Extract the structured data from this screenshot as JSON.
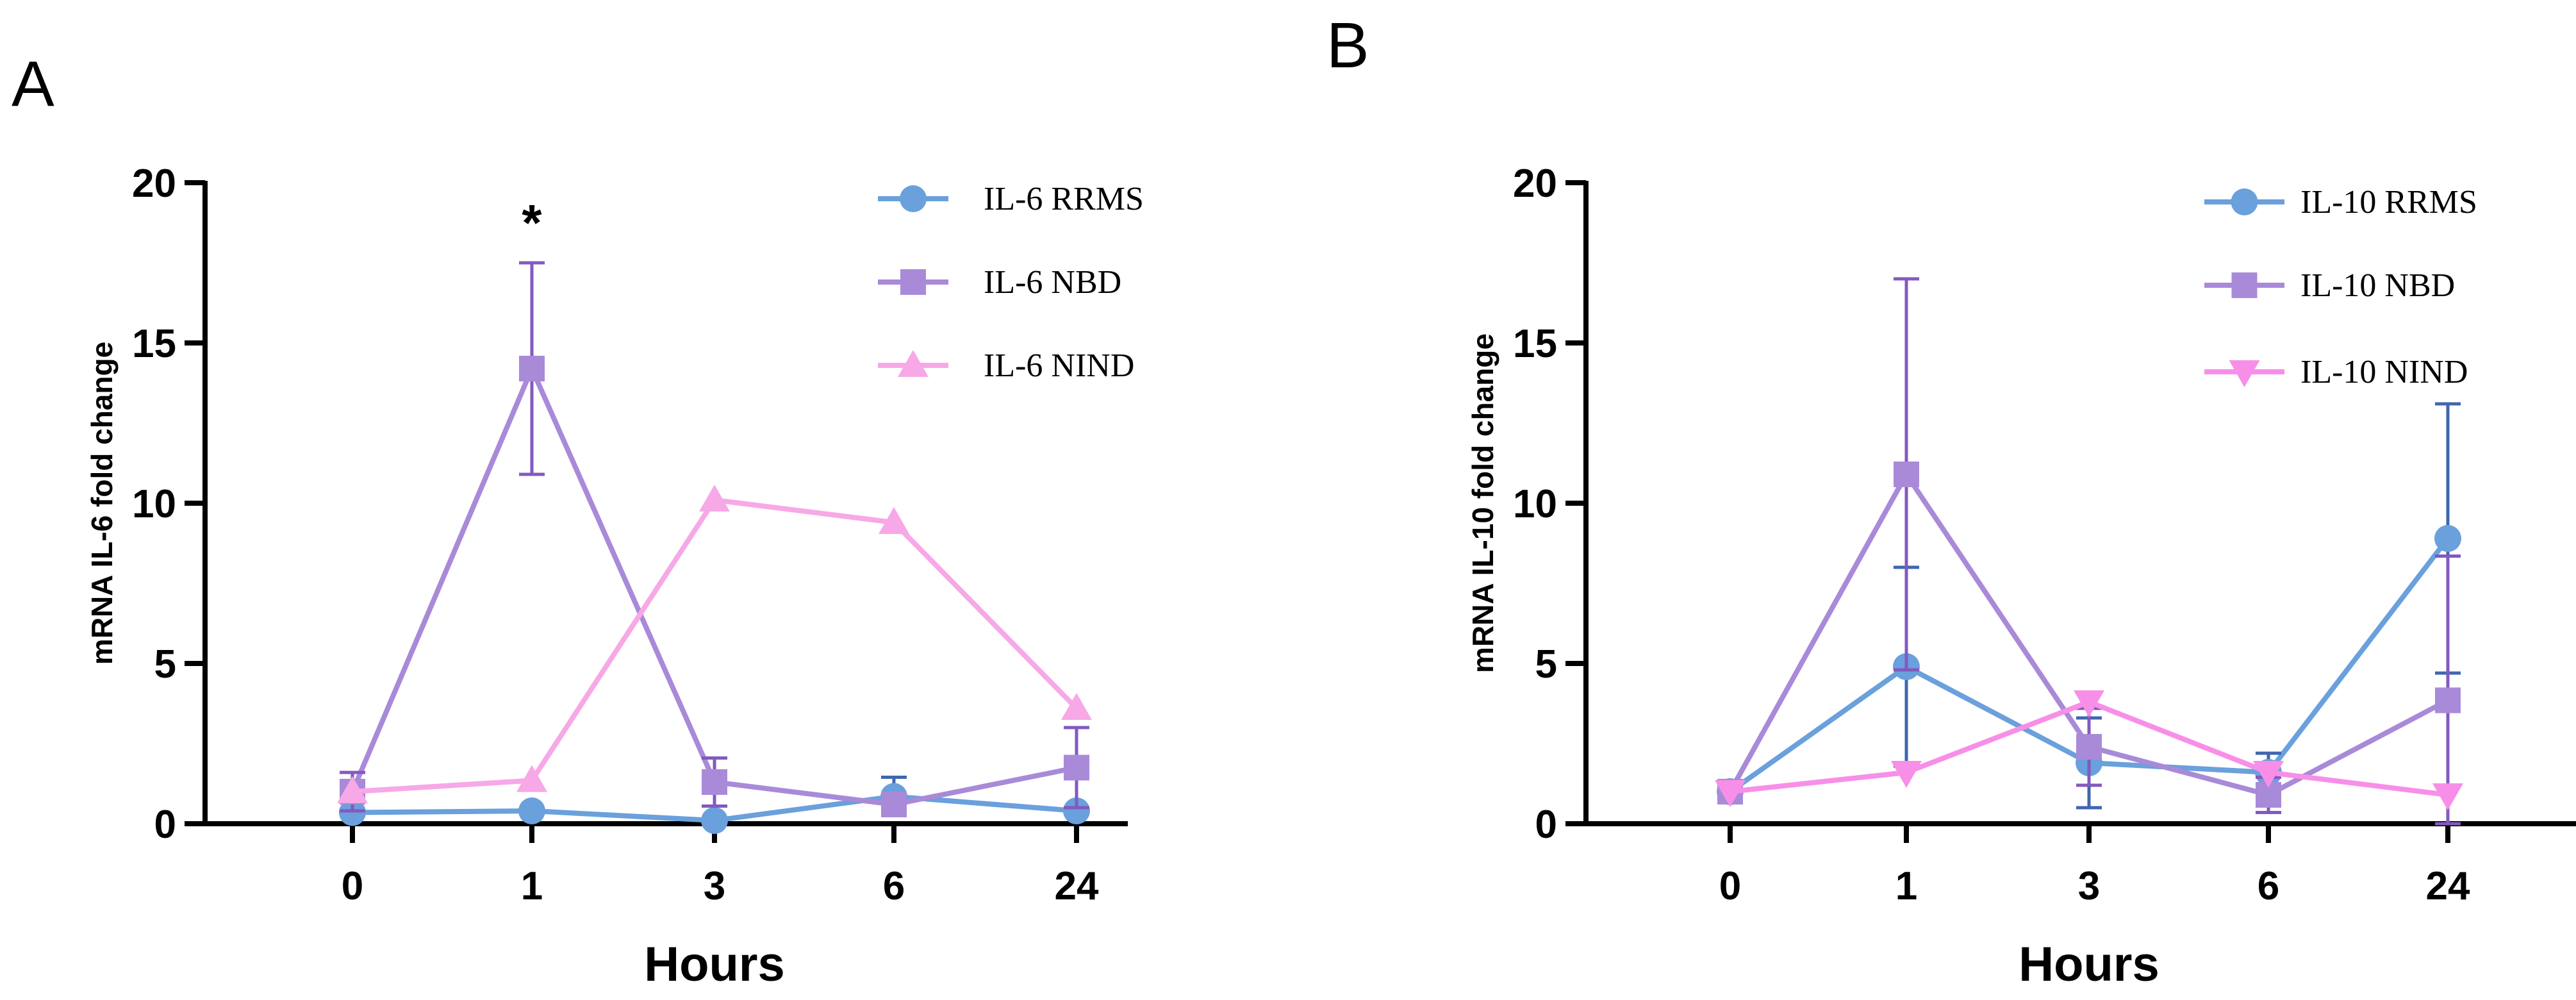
{
  "chart_data": [
    {
      "type": "line",
      "panel_label": "A",
      "xlabel": "Hours",
      "ylabel": "mRNA IL-6 fold change",
      "categories": [
        "0",
        "1",
        "3",
        "6",
        "24"
      ],
      "ylim": [
        0,
        20
      ],
      "yticks": [
        0,
        5,
        10,
        15,
        20
      ],
      "grid": false,
      "legend_position": "top-right",
      "series": [
        {
          "name": "IL-6 RRMS",
          "color": "#6aa0dc",
          "marker": "circle",
          "values": [
            0.35,
            0.4,
            0.1,
            0.85,
            0.4
          ],
          "err": [
            0,
            0,
            0,
            0.6,
            0
          ],
          "err_color": "#3f66b0"
        },
        {
          "name": "IL-6 NBD",
          "color": "#a98ad8",
          "marker": "square",
          "values": [
            1.0,
            14.2,
            1.3,
            0.6,
            1.75
          ],
          "err": [
            0.6,
            3.3,
            0.75,
            0.35,
            1.25
          ],
          "err_color": "#8359c0"
        },
        {
          "name": "IL-6 NIND",
          "color": "#f7a8e6",
          "marker": "triangle-up",
          "values": [
            1.0,
            1.35,
            10.1,
            9.4,
            3.6
          ],
          "err": [
            0,
            0,
            0,
            0,
            0
          ],
          "err_color": "#f7a8e6"
        }
      ],
      "annotations": [
        {
          "text": "*",
          "category": "1"
        }
      ]
    },
    {
      "type": "line",
      "panel_label": "B",
      "xlabel": "Hours",
      "ylabel": "mRNA IL-10  fold change",
      "categories": [
        "0",
        "1",
        "3",
        "6",
        "24"
      ],
      "ylim": [
        0,
        20
      ],
      "yticks": [
        0,
        5,
        10,
        15,
        20
      ],
      "grid": false,
      "legend_position": "top-right",
      "series": [
        {
          "name": "IL-10 RRMS",
          "color": "#6aa0dc",
          "marker": "circle",
          "values": [
            1.0,
            4.9,
            1.9,
            1.6,
            8.9
          ],
          "err": [
            0,
            3.1,
            1.4,
            0.6,
            4.2
          ],
          "err_color": "#3f66b0"
        },
        {
          "name": "IL-10 NBD",
          "color": "#a98ad8",
          "marker": "square",
          "values": [
            1.0,
            10.9,
            2.4,
            0.9,
            3.85
          ],
          "err": [
            0,
            6.1,
            1.2,
            0.55,
            4.5
          ],
          "err_color": "#8359c0"
        },
        {
          "name": "IL-10 NIND",
          "color": "#f78fe8",
          "marker": "triangle-down",
          "values": [
            1.0,
            1.6,
            3.8,
            1.6,
            0.9
          ],
          "err": [
            0,
            0,
            0,
            0,
            0
          ],
          "err_color": "#f78fe8"
        }
      ],
      "annotations": []
    }
  ]
}
